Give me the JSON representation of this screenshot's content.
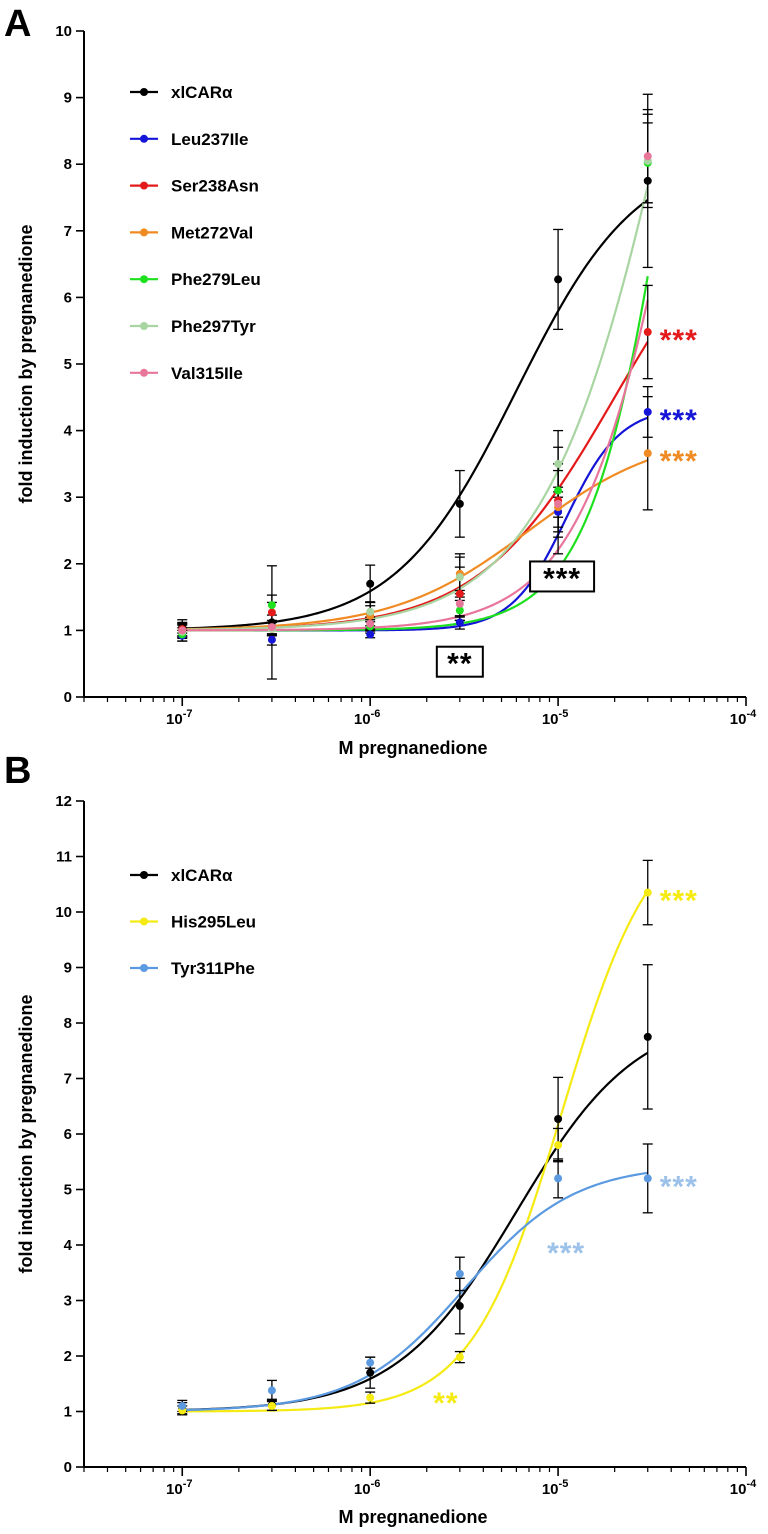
{
  "chart_data": [
    {
      "panel": "A",
      "type": "line",
      "xlabel": "M pregnanedione",
      "ylabel": "fold induction by pregnanedione",
      "xscale": "log",
      "xlim": [
        3e-08,
        0.0001
      ],
      "ylim": [
        0,
        10
      ],
      "xticks": [
        "10-7",
        "10-6",
        "10-5",
        "10-4"
      ],
      "yticks": [
        "0",
        "1",
        "2",
        "3",
        "4",
        "5",
        "6",
        "7",
        "8",
        "9",
        "10"
      ],
      "legend_position": "top-left",
      "x": [
        1e-07,
        3e-07,
        1e-06,
        3e-06,
        1e-05,
        3e-05
      ],
      "series": [
        {
          "name": "xlCARα",
          "color": "#000000",
          "values": [
            1.06,
            1.12,
            1.7,
            2.9,
            6.27,
            7.75
          ],
          "errors": [
            0.1,
            0.85,
            0.28,
            0.5,
            0.75,
            1.3
          ],
          "fit": {
            "bottom": 1.0,
            "top": 8.2,
            "ec50": 6e-06,
            "hill": 1.35
          }
        },
        {
          "name": "Leu237Ile",
          "color": "#1515d8",
          "values": [
            0.92,
            0.86,
            0.94,
            1.12,
            2.78,
            4.28
          ],
          "errors": [
            0.08,
            0.08,
            0.05,
            0.1,
            0.3,
            0.38
          ],
          "fit": {
            "bottom": 1.0,
            "top": 4.35,
            "ec50": 1.1e-05,
            "hill": 3.0
          }
        },
        {
          "name": "Ser238Asn",
          "color": "#e41a1a",
          "values": [
            1.02,
            1.27,
            1.22,
            1.55,
            2.95,
            5.48
          ],
          "errors": [
            0.1,
            0.15,
            0.2,
            0.4,
            0.8,
            0.7
          ],
          "fit": {
            "bottom": 1.0,
            "top": 8.0,
            "ec50": 2e-05,
            "hill": 1.2
          }
        },
        {
          "name": "Met272Val",
          "color": "#f08a22",
          "values": [
            1.0,
            1.02,
            1.22,
            1.85,
            2.85,
            3.66
          ],
          "errors": [
            0.1,
            0.1,
            0.15,
            0.3,
            0.3,
            0.85
          ],
          "fit": {
            "bottom": 1.0,
            "top": 4.0,
            "ec50": 7e-06,
            "hill": 1.2
          }
        },
        {
          "name": "Phe279Leu",
          "color": "#1fe01f",
          "values": [
            0.94,
            1.38,
            1.06,
            1.3,
            3.1,
            8.02
          ],
          "errors": [
            0.1,
            0.15,
            0.1,
            0.15,
            0.4,
            0.6
          ],
          "fit": {
            "bottom": 1.0,
            "top": 20.0,
            "ec50": 5e-05,
            "hill": 1.85
          }
        },
        {
          "name": "Phe297Tyr",
          "color": "#a8d5a2",
          "values": [
            0.98,
            1.02,
            1.28,
            1.8,
            3.5,
            8.05
          ],
          "errors": [
            0.1,
            0.1,
            0.15,
            0.3,
            0.5,
            0.7
          ],
          "fit": {
            "bottom": 1.0,
            "top": 20.0,
            "ec50": 5e-05,
            "hill": 1.2
          }
        },
        {
          "name": "Val315Ile",
          "color": "#e8769a",
          "values": [
            1.0,
            1.05,
            1.1,
            1.4,
            2.9,
            8.12
          ],
          "errors": [
            0.1,
            0.1,
            0.1,
            0.2,
            0.5,
            0.7
          ],
          "fit": {
            "bottom": 1.0,
            "top": 20.0,
            "ec50": 6e-05,
            "hill": 1.5
          }
        }
      ],
      "annotations": [
        {
          "text": "***",
          "color": "#e41a1a",
          "x": 3e-05,
          "y": 5.48,
          "boxed": false
        },
        {
          "text": "***",
          "color": "#1515d8",
          "x": 3e-05,
          "y": 4.28,
          "boxed": false
        },
        {
          "text": "***",
          "color": "#f08a22",
          "x": 3e-05,
          "y": 3.66,
          "boxed": false
        },
        {
          "text": "***",
          "color": "#000000",
          "x": 1e-05,
          "y": 1.9,
          "boxed": true
        },
        {
          "text": "**",
          "color": "#000000",
          "x": 3e-06,
          "y": 0.62,
          "boxed": true
        }
      ]
    },
    {
      "panel": "B",
      "type": "line",
      "xlabel": "M pregnanedione",
      "ylabel": "fold induction by pregnanedione",
      "xscale": "log",
      "xlim": [
        3e-08,
        0.0001
      ],
      "ylim": [
        0,
        12
      ],
      "xticks": [
        "10-7",
        "10-6",
        "10-5",
        "10-4"
      ],
      "yticks": [
        "0",
        "1",
        "2",
        "3",
        "4",
        "5",
        "6",
        "7",
        "8",
        "9",
        "10",
        "11",
        "12"
      ],
      "legend_position": "top-left",
      "x": [
        1e-07,
        3e-07,
        1e-06,
        3e-06,
        1e-05,
        3e-05
      ],
      "series": [
        {
          "name": "xlCARα",
          "color": "#000000",
          "values": [
            1.06,
            1.12,
            1.7,
            2.9,
            6.27,
            7.75
          ],
          "errors": [
            0.1,
            0.1,
            0.28,
            0.5,
            0.75,
            1.3
          ],
          "fit": {
            "bottom": 1.0,
            "top": 8.2,
            "ec50": 6e-06,
            "hill": 1.35
          }
        },
        {
          "name": "His295Leu",
          "color": "#f5ea12",
          "values": [
            1.02,
            1.1,
            1.25,
            1.98,
            5.8,
            10.35
          ],
          "errors": [
            0.08,
            0.08,
            0.1,
            0.1,
            0.3,
            0.58
          ],
          "fit": {
            "bottom": 1.0,
            "top": 11.8,
            "ec50": 1.05e-05,
            "hill": 1.8
          }
        },
        {
          "name": "Tyr311Phe",
          "color": "#5b9ae0",
          "values": [
            1.1,
            1.38,
            1.88,
            3.48,
            5.2,
            5.2
          ],
          "errors": [
            0.1,
            0.18,
            0.1,
            0.3,
            0.35,
            0.62
          ],
          "fit": {
            "bottom": 1.0,
            "top": 5.45,
            "ec50": 3.2e-06,
            "hill": 1.5
          }
        }
      ],
      "annotations": [
        {
          "text": "***",
          "color": "#f5ea12",
          "x": 3e-05,
          "y": 10.35,
          "boxed": false
        },
        {
          "text": "***",
          "color": "#9cc2ea",
          "x": 3e-05,
          "y": 5.2,
          "boxed": false
        },
        {
          "text": "***",
          "color": "#9cc2ea",
          "x": 1e-05,
          "y": 4.0,
          "boxed": false
        },
        {
          "text": "**",
          "color": "#f5ea12",
          "x": 3e-06,
          "y": 1.3,
          "boxed": false
        }
      ]
    }
  ]
}
